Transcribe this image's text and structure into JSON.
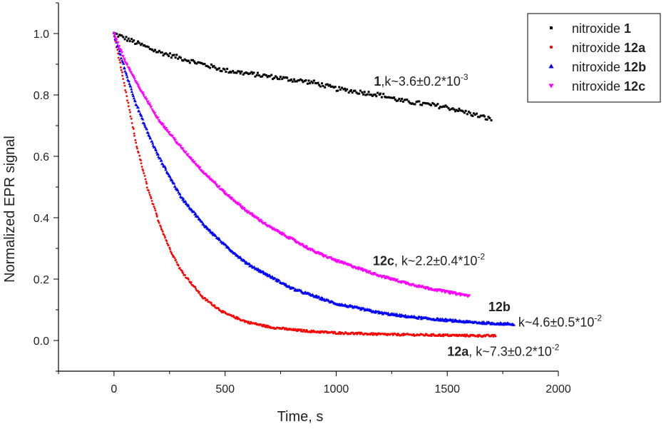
{
  "chart_data": {
    "type": "scatter",
    "title": "",
    "xlabel": "Time, s",
    "ylabel": "Normalized EPR signal",
    "xlim": [
      -250,
      2000
    ],
    "ylim": [
      -0.1,
      1.1
    ],
    "xticks": [
      0,
      500,
      1000,
      1500,
      2000
    ],
    "yticks": [
      0.0,
      0.2,
      0.4,
      0.6,
      0.8,
      1.0
    ],
    "xtick_labels": [
      "0",
      "500",
      "1000",
      "1500",
      "2000"
    ],
    "ytick_labels": [
      "0.0",
      "0.2",
      "0.4",
      "0.6",
      "0.8",
      "1.0"
    ],
    "grid": false,
    "legend_position": "top-right",
    "series": [
      {
        "name": "nitroxide 1",
        "legend_prefix": "nitroxide ",
        "legend_bold": "1",
        "color": "#000000",
        "marker": "square",
        "x": [
          0,
          100,
          200,
          300,
          400,
          500,
          600,
          700,
          800,
          900,
          1000,
          1100,
          1200,
          1300,
          1400,
          1500,
          1600,
          1700
        ],
        "y": [
          1.0,
          0.97,
          0.94,
          0.92,
          0.9,
          0.88,
          0.87,
          0.86,
          0.85,
          0.84,
          0.82,
          0.81,
          0.8,
          0.78,
          0.77,
          0.76,
          0.74,
          0.72
        ]
      },
      {
        "name": "nitroxide 12a",
        "legend_prefix": "nitroxide ",
        "legend_bold": "12a",
        "color": "#ff0000",
        "marker": "circle",
        "x": [
          0,
          50,
          100,
          150,
          200,
          250,
          300,
          400,
          500,
          600,
          700,
          800,
          900,
          1000,
          1200,
          1400,
          1600,
          1720
        ],
        "y": [
          1.0,
          0.82,
          0.64,
          0.5,
          0.39,
          0.3,
          0.23,
          0.14,
          0.088,
          0.06,
          0.044,
          0.035,
          0.029,
          0.025,
          0.02,
          0.018,
          0.016,
          0.015
        ]
      },
      {
        "name": "nitroxide 12b",
        "legend_prefix": "nitroxide ",
        "legend_bold": "12b",
        "color": "#0000ff",
        "marker": "triangle-up",
        "x": [
          0,
          50,
          100,
          150,
          200,
          300,
          400,
          500,
          600,
          700,
          800,
          900,
          1000,
          1100,
          1200,
          1300,
          1400,
          1500,
          1600,
          1700,
          1800
        ],
        "y": [
          1.0,
          0.88,
          0.77,
          0.68,
          0.6,
          0.47,
          0.38,
          0.31,
          0.25,
          0.21,
          0.17,
          0.145,
          0.12,
          0.105,
          0.09,
          0.08,
          0.072,
          0.066,
          0.06,
          0.056,
          0.053
        ]
      },
      {
        "name": "nitroxide 12c",
        "legend_prefix": "nitroxide ",
        "legend_bold": "12c",
        "color": "#ff00ff",
        "marker": "triangle-down",
        "x": [
          0,
          50,
          100,
          200,
          300,
          400,
          500,
          600,
          700,
          800,
          900,
          1000,
          1100,
          1200,
          1300,
          1400,
          1500,
          1600
        ],
        "y": [
          1.0,
          0.91,
          0.84,
          0.72,
          0.63,
          0.55,
          0.48,
          0.42,
          0.37,
          0.33,
          0.29,
          0.26,
          0.235,
          0.21,
          0.19,
          0.172,
          0.158,
          0.145
        ]
      }
    ],
    "annotations": [
      {
        "series": "nitroxide 1",
        "bold": "1",
        "text": ",k~3.6±0.2*10",
        "sup": "-3",
        "x": 1170,
        "y": 0.83
      },
      {
        "series": "nitroxide 12c",
        "bold": "12c",
        "text": ", k~2.2±0.4*10",
        "sup": "-2",
        "x": 1165,
        "y": 0.245
      },
      {
        "series": "nitroxide 12b",
        "bold": "12b",
        "text": "",
        "sup": "",
        "x": 1685,
        "y": 0.095
      },
      {
        "series": "nitroxide 12b",
        "bold": "",
        "text": "k~4.6±0.5*10",
        "sup": "-2",
        "x": 1820,
        "y": 0.045
      },
      {
        "series": "nitroxide 12a",
        "bold": "12a",
        "text": ", k~7.3±0.2*10",
        "sup": "-2",
        "x": 1500,
        "y": -0.05
      }
    ]
  }
}
